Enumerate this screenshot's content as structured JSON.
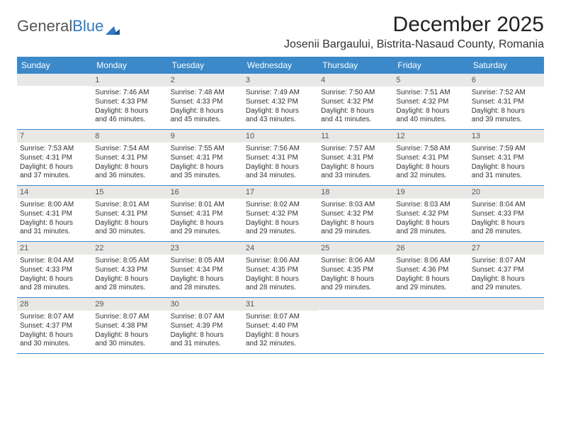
{
  "logo": {
    "text1": "General",
    "text2": "Blue"
  },
  "title": "December 2025",
  "location": "Josenii Bargaului, Bistrita-Nasaud County, Romania",
  "colors": {
    "header_bg": "#3b89c9",
    "header_text": "#ffffff",
    "daynum_bg": "#e8e8e7",
    "week_border": "#3b89c9",
    "logo_gray": "#555555",
    "logo_blue": "#2f78c2",
    "page_bg": "#ffffff"
  },
  "day_names": [
    "Sunday",
    "Monday",
    "Tuesday",
    "Wednesday",
    "Thursday",
    "Friday",
    "Saturday"
  ],
  "weeks": [
    [
      {
        "day": "",
        "sunrise": "",
        "sunset": "",
        "dl1": "",
        "dl2": ""
      },
      {
        "day": "1",
        "sunrise": "Sunrise: 7:46 AM",
        "sunset": "Sunset: 4:33 PM",
        "dl1": "Daylight: 8 hours",
        "dl2": "and 46 minutes."
      },
      {
        "day": "2",
        "sunrise": "Sunrise: 7:48 AM",
        "sunset": "Sunset: 4:33 PM",
        "dl1": "Daylight: 8 hours",
        "dl2": "and 45 minutes."
      },
      {
        "day": "3",
        "sunrise": "Sunrise: 7:49 AM",
        "sunset": "Sunset: 4:32 PM",
        "dl1": "Daylight: 8 hours",
        "dl2": "and 43 minutes."
      },
      {
        "day": "4",
        "sunrise": "Sunrise: 7:50 AM",
        "sunset": "Sunset: 4:32 PM",
        "dl1": "Daylight: 8 hours",
        "dl2": "and 41 minutes."
      },
      {
        "day": "5",
        "sunrise": "Sunrise: 7:51 AM",
        "sunset": "Sunset: 4:32 PM",
        "dl1": "Daylight: 8 hours",
        "dl2": "and 40 minutes."
      },
      {
        "day": "6",
        "sunrise": "Sunrise: 7:52 AM",
        "sunset": "Sunset: 4:31 PM",
        "dl1": "Daylight: 8 hours",
        "dl2": "and 39 minutes."
      }
    ],
    [
      {
        "day": "7",
        "sunrise": "Sunrise: 7:53 AM",
        "sunset": "Sunset: 4:31 PM",
        "dl1": "Daylight: 8 hours",
        "dl2": "and 37 minutes."
      },
      {
        "day": "8",
        "sunrise": "Sunrise: 7:54 AM",
        "sunset": "Sunset: 4:31 PM",
        "dl1": "Daylight: 8 hours",
        "dl2": "and 36 minutes."
      },
      {
        "day": "9",
        "sunrise": "Sunrise: 7:55 AM",
        "sunset": "Sunset: 4:31 PM",
        "dl1": "Daylight: 8 hours",
        "dl2": "and 35 minutes."
      },
      {
        "day": "10",
        "sunrise": "Sunrise: 7:56 AM",
        "sunset": "Sunset: 4:31 PM",
        "dl1": "Daylight: 8 hours",
        "dl2": "and 34 minutes."
      },
      {
        "day": "11",
        "sunrise": "Sunrise: 7:57 AM",
        "sunset": "Sunset: 4:31 PM",
        "dl1": "Daylight: 8 hours",
        "dl2": "and 33 minutes."
      },
      {
        "day": "12",
        "sunrise": "Sunrise: 7:58 AM",
        "sunset": "Sunset: 4:31 PM",
        "dl1": "Daylight: 8 hours",
        "dl2": "and 32 minutes."
      },
      {
        "day": "13",
        "sunrise": "Sunrise: 7:59 AM",
        "sunset": "Sunset: 4:31 PM",
        "dl1": "Daylight: 8 hours",
        "dl2": "and 31 minutes."
      }
    ],
    [
      {
        "day": "14",
        "sunrise": "Sunrise: 8:00 AM",
        "sunset": "Sunset: 4:31 PM",
        "dl1": "Daylight: 8 hours",
        "dl2": "and 31 minutes."
      },
      {
        "day": "15",
        "sunrise": "Sunrise: 8:01 AM",
        "sunset": "Sunset: 4:31 PM",
        "dl1": "Daylight: 8 hours",
        "dl2": "and 30 minutes."
      },
      {
        "day": "16",
        "sunrise": "Sunrise: 8:01 AM",
        "sunset": "Sunset: 4:31 PM",
        "dl1": "Daylight: 8 hours",
        "dl2": "and 29 minutes."
      },
      {
        "day": "17",
        "sunrise": "Sunrise: 8:02 AM",
        "sunset": "Sunset: 4:32 PM",
        "dl1": "Daylight: 8 hours",
        "dl2": "and 29 minutes."
      },
      {
        "day": "18",
        "sunrise": "Sunrise: 8:03 AM",
        "sunset": "Sunset: 4:32 PM",
        "dl1": "Daylight: 8 hours",
        "dl2": "and 29 minutes."
      },
      {
        "day": "19",
        "sunrise": "Sunrise: 8:03 AM",
        "sunset": "Sunset: 4:32 PM",
        "dl1": "Daylight: 8 hours",
        "dl2": "and 28 minutes."
      },
      {
        "day": "20",
        "sunrise": "Sunrise: 8:04 AM",
        "sunset": "Sunset: 4:33 PM",
        "dl1": "Daylight: 8 hours",
        "dl2": "and 28 minutes."
      }
    ],
    [
      {
        "day": "21",
        "sunrise": "Sunrise: 8:04 AM",
        "sunset": "Sunset: 4:33 PM",
        "dl1": "Daylight: 8 hours",
        "dl2": "and 28 minutes."
      },
      {
        "day": "22",
        "sunrise": "Sunrise: 8:05 AM",
        "sunset": "Sunset: 4:33 PM",
        "dl1": "Daylight: 8 hours",
        "dl2": "and 28 minutes."
      },
      {
        "day": "23",
        "sunrise": "Sunrise: 8:05 AM",
        "sunset": "Sunset: 4:34 PM",
        "dl1": "Daylight: 8 hours",
        "dl2": "and 28 minutes."
      },
      {
        "day": "24",
        "sunrise": "Sunrise: 8:06 AM",
        "sunset": "Sunset: 4:35 PM",
        "dl1": "Daylight: 8 hours",
        "dl2": "and 28 minutes."
      },
      {
        "day": "25",
        "sunrise": "Sunrise: 8:06 AM",
        "sunset": "Sunset: 4:35 PM",
        "dl1": "Daylight: 8 hours",
        "dl2": "and 29 minutes."
      },
      {
        "day": "26",
        "sunrise": "Sunrise: 8:06 AM",
        "sunset": "Sunset: 4:36 PM",
        "dl1": "Daylight: 8 hours",
        "dl2": "and 29 minutes."
      },
      {
        "day": "27",
        "sunrise": "Sunrise: 8:07 AM",
        "sunset": "Sunset: 4:37 PM",
        "dl1": "Daylight: 8 hours",
        "dl2": "and 29 minutes."
      }
    ],
    [
      {
        "day": "28",
        "sunrise": "Sunrise: 8:07 AM",
        "sunset": "Sunset: 4:37 PM",
        "dl1": "Daylight: 8 hours",
        "dl2": "and 30 minutes."
      },
      {
        "day": "29",
        "sunrise": "Sunrise: 8:07 AM",
        "sunset": "Sunset: 4:38 PM",
        "dl1": "Daylight: 8 hours",
        "dl2": "and 30 minutes."
      },
      {
        "day": "30",
        "sunrise": "Sunrise: 8:07 AM",
        "sunset": "Sunset: 4:39 PM",
        "dl1": "Daylight: 8 hours",
        "dl2": "and 31 minutes."
      },
      {
        "day": "31",
        "sunrise": "Sunrise: 8:07 AM",
        "sunset": "Sunset: 4:40 PM",
        "dl1": "Daylight: 8 hours",
        "dl2": "and 32 minutes."
      },
      {
        "day": "",
        "sunrise": "",
        "sunset": "",
        "dl1": "",
        "dl2": ""
      },
      {
        "day": "",
        "sunrise": "",
        "sunset": "",
        "dl1": "",
        "dl2": ""
      },
      {
        "day": "",
        "sunrise": "",
        "sunset": "",
        "dl1": "",
        "dl2": ""
      }
    ]
  ]
}
